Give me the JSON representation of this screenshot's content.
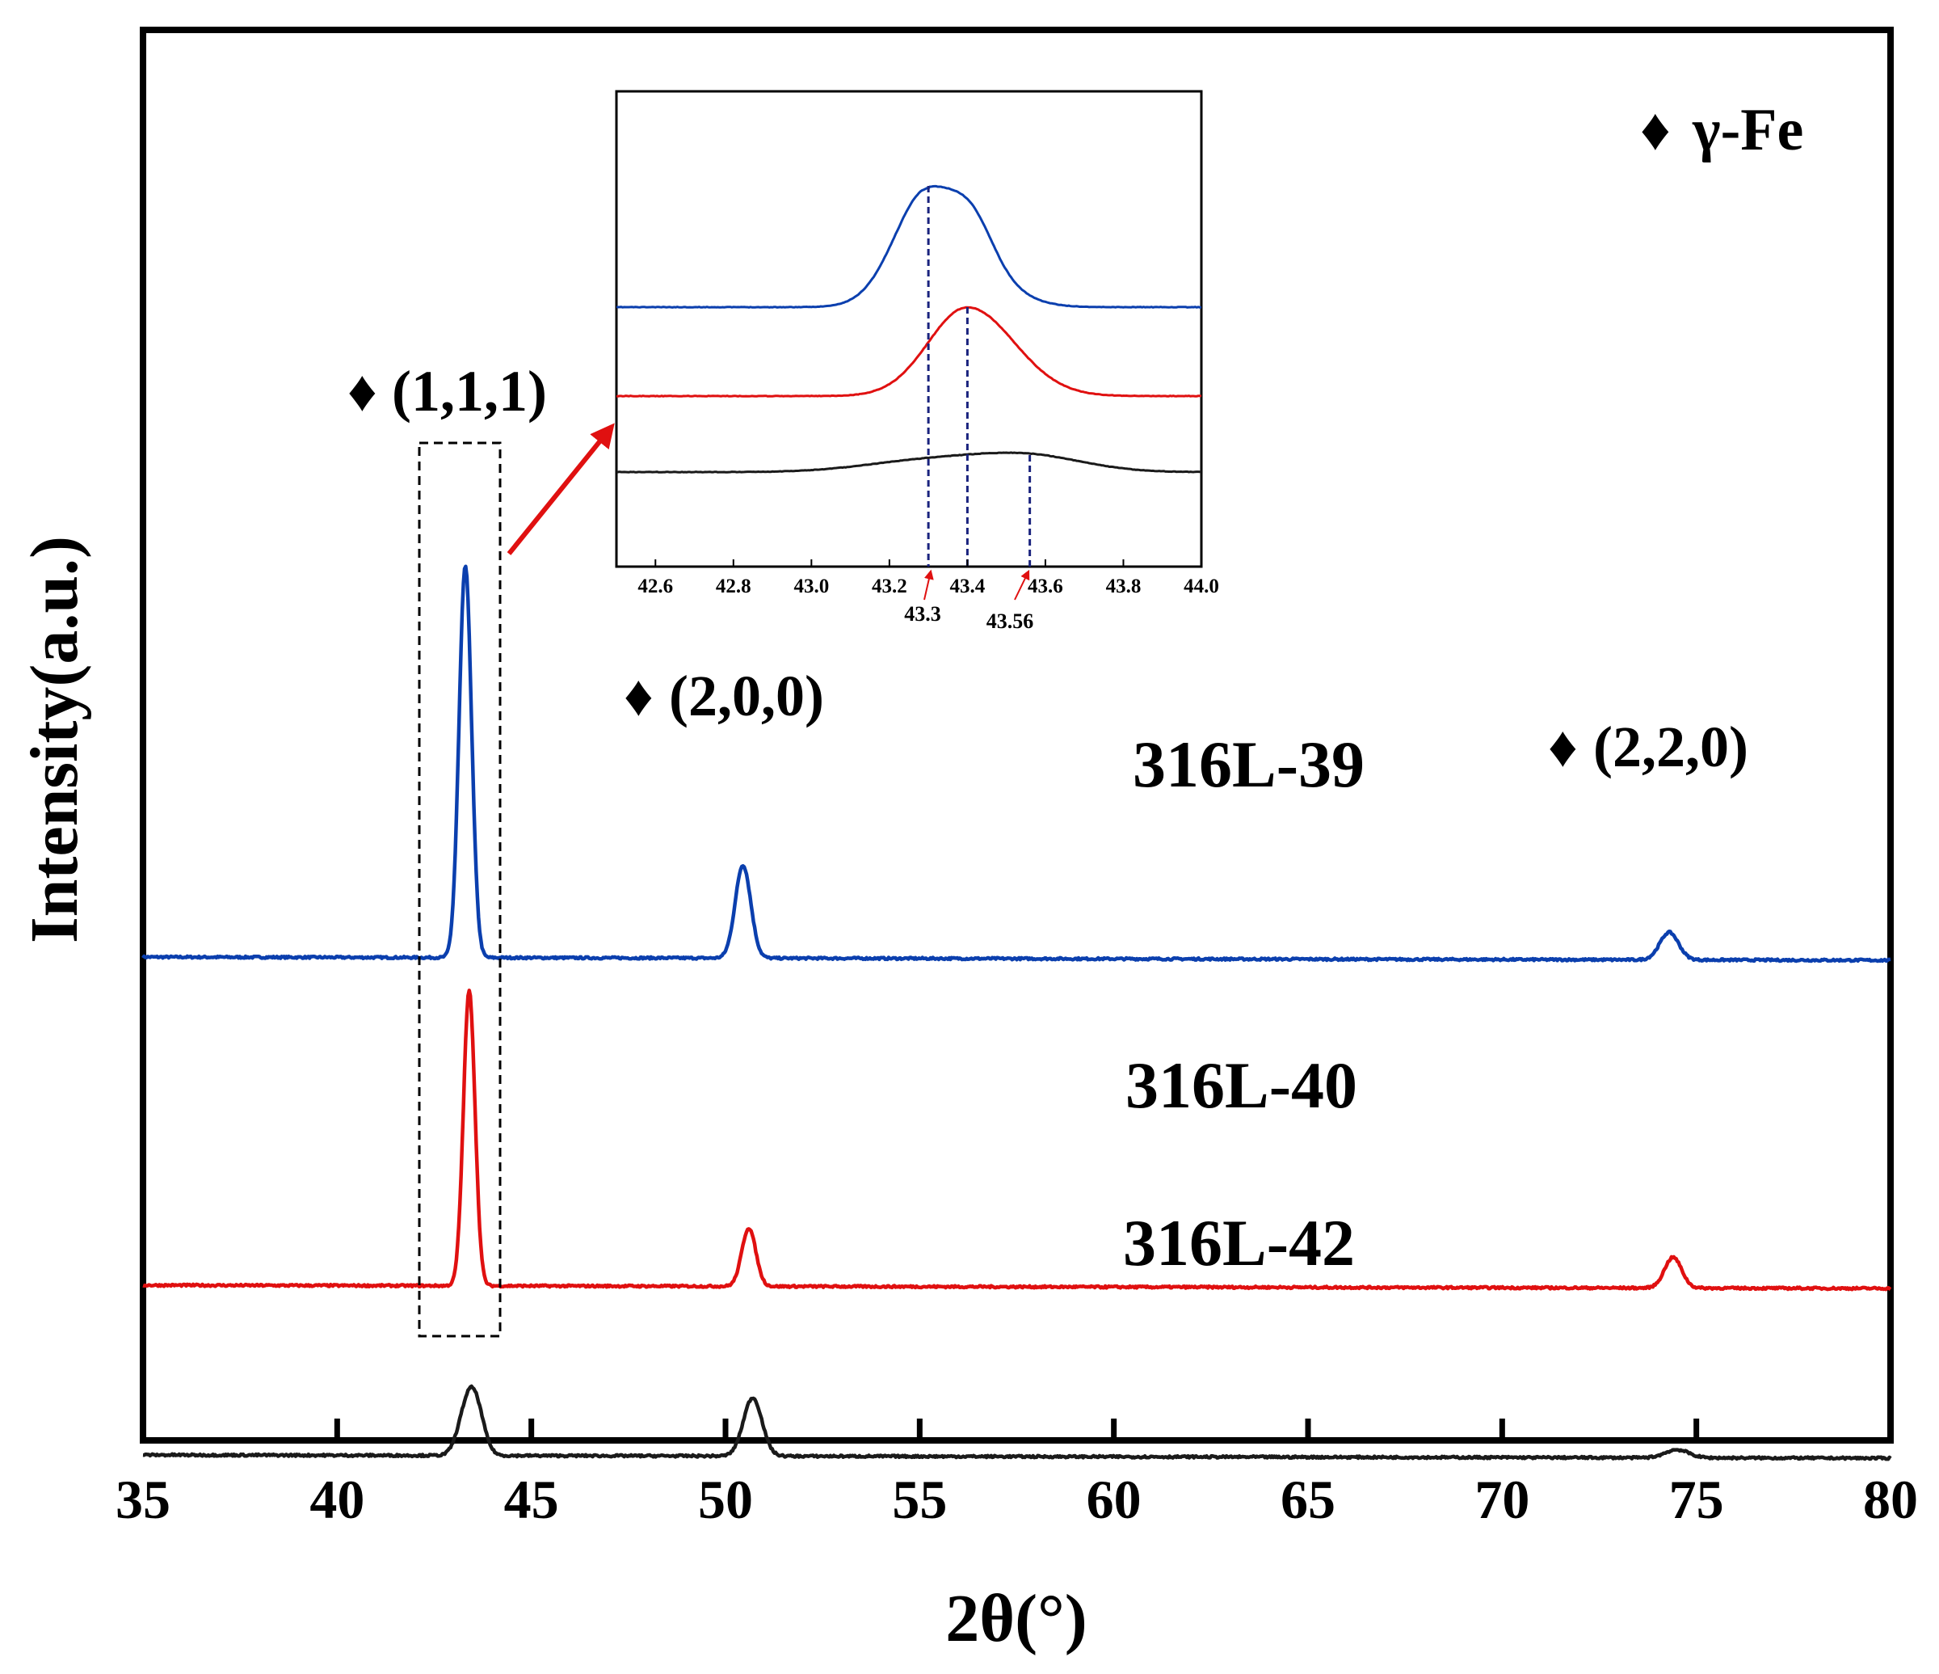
{
  "chart_data": {
    "type": "line",
    "xlabel": "2θ(°)",
    "ylabel": "Intensity(a.u.)",
    "xlim": [
      35,
      80
    ],
    "x_ticks": [
      "35",
      "40",
      "45",
      "50",
      "55",
      "60",
      "65",
      "70",
      "75",
      "80"
    ],
    "y_ticks_shown": false,
    "legend": {
      "marker": "♦",
      "label": "γ-Fe",
      "position": "top-right"
    },
    "series": [
      {
        "name": "316L-39",
        "color": "#0b3fae",
        "baseline": 0.66,
        "peaks": [
          {
            "x": 43.3,
            "height": 4.85,
            "width": 0.16
          },
          {
            "x": 50.45,
            "height": 1.15,
            "width": 0.2
          },
          {
            "x": 74.3,
            "height": 0.34,
            "width": 0.24
          }
        ]
      },
      {
        "name": "316L-40",
        "color": "#e01010",
        "baseline": -3.4,
        "peaks": [
          {
            "x": 43.4,
            "height": 3.65,
            "width": 0.15
          },
          {
            "x": 50.6,
            "height": 0.72,
            "width": 0.18
          },
          {
            "x": 74.4,
            "height": 0.38,
            "width": 0.22
          }
        ]
      },
      {
        "name": "316L-42",
        "color": "#1a1a1a",
        "baseline": -5.5,
        "peaks": [
          {
            "x": 43.3,
            "height": 0.42,
            "width": 0.22
          },
          {
            "x": 43.56,
            "height": 0.58,
            "width": 0.22
          },
          {
            "x": 50.7,
            "height": 0.72,
            "width": 0.24
          },
          {
            "x": 74.5,
            "height": 0.1,
            "width": 0.3
          }
        ]
      }
    ],
    "peak_labels": [
      {
        "marker": "♦",
        "text": "(1,1,1)"
      },
      {
        "marker": "♦",
        "text": "(2,0,0)"
      },
      {
        "marker": "♦",
        "text": "(2,2,0)"
      }
    ],
    "inset": {
      "xlim": [
        42.5,
        44.0
      ],
      "x_ticks": [
        "42.6",
        "42.8",
        "43.0",
        "43.2",
        "43.4",
        "43.6",
        "43.8",
        "44.0"
      ],
      "marked_positions": [
        43.3,
        43.4,
        43.56
      ],
      "annotations": [
        "43.3",
        "43.56"
      ],
      "series_order": [
        "316L-39",
        "316L-40",
        "316L-42"
      ]
    }
  }
}
